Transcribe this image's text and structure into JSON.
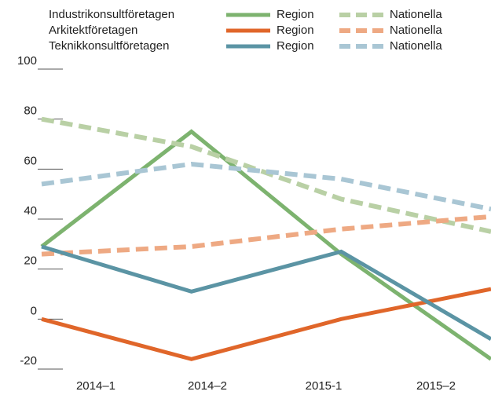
{
  "chart_data": {
    "type": "line",
    "legend_groups": [
      "Industrikonsultföretagen",
      "Arkitektföretagen",
      "Teknikkonsultföretagen"
    ],
    "categories": [
      "2014–1",
      "2014–2",
      "2015-1",
      "2015–2"
    ],
    "series": [
      {
        "name": "Region",
        "color": "#7db36f",
        "dashed": false,
        "group": 0,
        "values": [
          29,
          75,
          26,
          -16
        ]
      },
      {
        "name": "Nationella",
        "color": "#b9d0a5",
        "dashed": true,
        "group": 0,
        "values": [
          80,
          69,
          48,
          35
        ]
      },
      {
        "name": "Region",
        "color": "#e0662a",
        "dashed": false,
        "group": 1,
        "values": [
          0,
          -16,
          0,
          12
        ]
      },
      {
        "name": "Nationella",
        "color": "#eea983",
        "dashed": true,
        "group": 1,
        "values": [
          26,
          29,
          36,
          41
        ]
      },
      {
        "name": "Region",
        "color": "#5b94a4",
        "dashed": false,
        "group": 2,
        "values": [
          29,
          11,
          27,
          -8
        ]
      },
      {
        "name": "Nationella",
        "color": "#a9c6d4",
        "dashed": true,
        "group": 2,
        "values": [
          54,
          62,
          56,
          44
        ]
      }
    ],
    "ylim": [
      -20,
      100
    ],
    "yticks": [
      -20,
      0,
      20,
      40,
      60,
      80,
      100
    ]
  }
}
